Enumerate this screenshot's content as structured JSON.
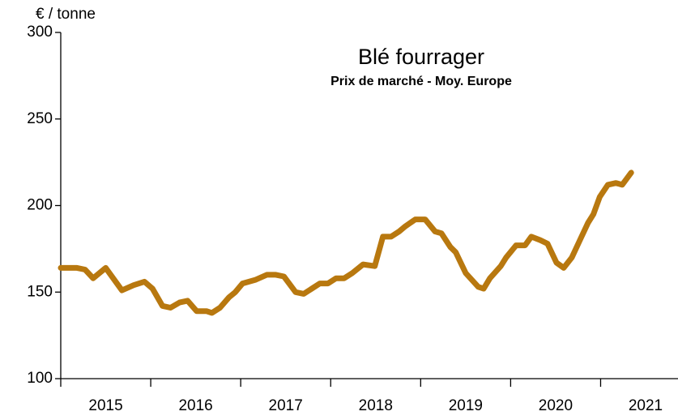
{
  "chart_data": {
    "type": "line",
    "title": "Blé fourrager",
    "subtitle": "Prix de marché - Moy. Europe",
    "y_label": "€ / tonne",
    "color": "#b8780f",
    "x": [
      2015.0,
      2015.18,
      2015.27,
      2015.36,
      2015.5,
      2015.68,
      2015.81,
      2015.93,
      2016.02,
      2016.13,
      2016.22,
      2016.32,
      2016.41,
      2016.51,
      2016.62,
      2016.68,
      2016.77,
      2016.87,
      2016.94,
      2017.02,
      2017.16,
      2017.29,
      2017.39,
      2017.48,
      2017.61,
      2017.7,
      2017.79,
      2017.88,
      2017.97,
      2018.06,
      2018.15,
      2018.24,
      2018.36,
      2018.49,
      2018.58,
      2018.67,
      2018.76,
      2018.83,
      2018.94,
      2019.05,
      2019.16,
      2019.23,
      2019.33,
      2019.39,
      2019.5,
      2019.64,
      2019.7,
      2019.77,
      2019.89,
      2019.95,
      2020.06,
      2020.16,
      2020.23,
      2020.33,
      2020.41,
      2020.51,
      2020.59,
      2020.68,
      2020.77,
      2020.86,
      2020.92,
      2020.99,
      2021.08,
      2021.17,
      2021.24,
      2021.34
    ],
    "values": [
      164,
      164,
      163,
      158,
      164,
      151,
      154,
      156,
      152,
      142,
      141,
      144,
      145,
      139,
      139,
      138,
      141,
      147,
      150,
      155,
      157,
      160,
      160,
      159,
      150,
      149,
      152,
      155,
      155,
      158,
      158,
      161,
      166,
      165,
      182,
      182,
      185,
      188,
      192,
      192,
      185,
      184,
      176,
      173,
      161,
      153,
      152,
      158,
      165,
      170,
      177,
      177,
      182,
      180,
      178,
      167,
      164,
      170,
      180,
      190,
      195,
      205,
      212,
      213,
      212,
      219
    ],
    "xlim": [
      2015,
      2021.86
    ],
    "xticks": [
      2015,
      2016,
      2017,
      2018,
      2019,
      2020,
      2021
    ],
    "ylim": [
      100,
      300
    ],
    "yticks": [
      100,
      150,
      200,
      250,
      300
    ],
    "grid": false
  }
}
